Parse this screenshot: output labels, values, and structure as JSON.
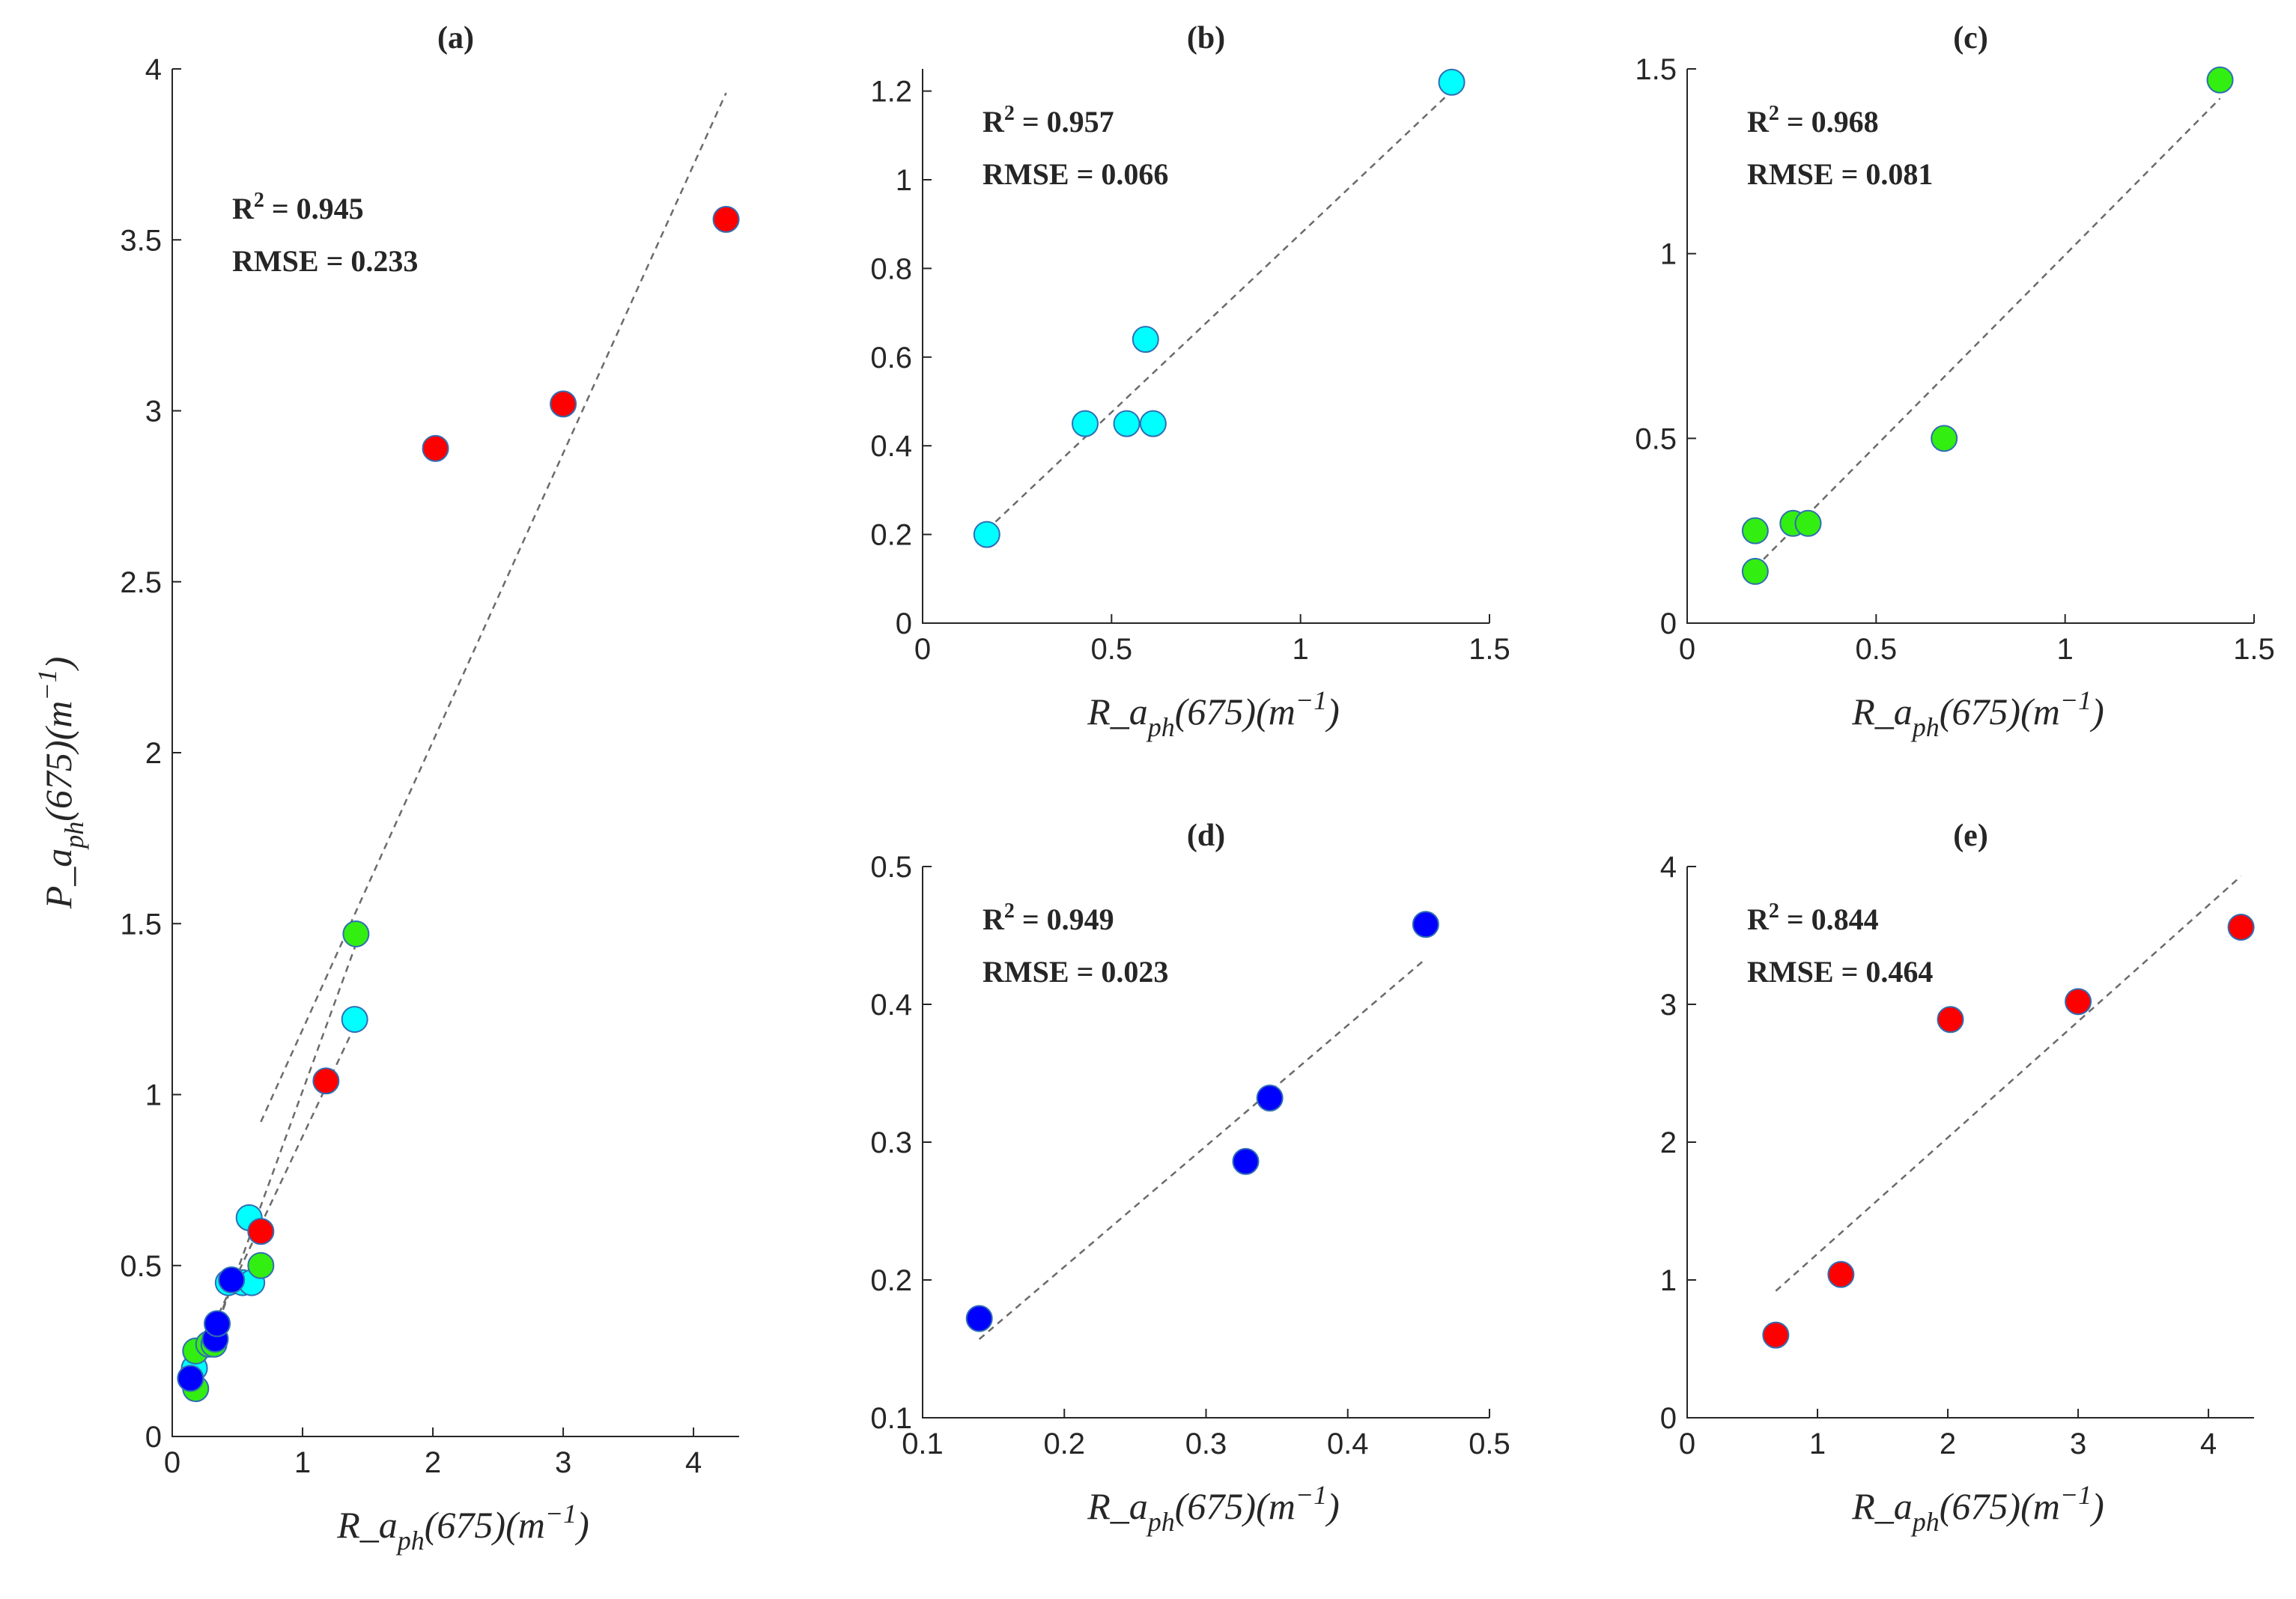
{
  "colors": {
    "red": "#ff0000",
    "cyan": "#00ffff",
    "green": "#33ee11",
    "blue": "#0000ff"
  },
  "chart_data": [
    {
      "id": "a",
      "type": "scatter",
      "title": "(a)",
      "xlabel": {
        "main": "R_a",
        "sub": "ph",
        "rest": "(675)(m",
        "sup": "−1",
        "close": ")"
      },
      "ylabel": {
        "main": "P_a",
        "sub": "ph",
        "rest": "(675)(m",
        "sup": "−1",
        "close": ")"
      },
      "xlim": [
        0,
        4.35
      ],
      "ylim": [
        0,
        4
      ],
      "xticks": [
        0,
        1,
        2,
        3,
        4
      ],
      "yticks": [
        0,
        0.5,
        1,
        1.5,
        2,
        2.5,
        3,
        3.5,
        4
      ],
      "xtick_labels": [
        "0",
        "1",
        "2",
        "3",
        "4"
      ],
      "ytick_labels": [
        "0",
        "0.5",
        "1",
        "1.5",
        "2",
        "2.5",
        "3",
        "3.5",
        "4"
      ],
      "annotation": {
        "r2_prefix": "R",
        "r2_sup": "2",
        "r2_value": " = 0.945",
        "rmse": "RMSE = 0.233"
      },
      "fit_lines": [
        {
          "x": [
            0.68,
            4.25
          ],
          "y": [
            0.92,
            3.93
          ]
        },
        {
          "x": [
            0.17,
            1.41
          ],
          "y": [
            0.14,
            1.44
          ]
        },
        {
          "x": [
            0.16,
            1.4
          ],
          "y": [
            0.2,
            1.2
          ]
        },
        {
          "x": [
            0.14,
            0.46
          ],
          "y": [
            0.15,
            0.44
          ]
        }
      ],
      "series": [
        {
          "name": "cyan",
          "color": "cyan",
          "points": [
            [
              0.17,
              0.2
            ],
            [
              0.43,
              0.45
            ],
            [
              0.54,
              0.45
            ],
            [
              0.61,
              0.45
            ],
            [
              0.59,
              0.64
            ],
            [
              1.4,
              1.22
            ]
          ]
        },
        {
          "name": "green",
          "color": "green",
          "points": [
            [
              0.18,
              0.14
            ],
            [
              0.18,
              0.25
            ],
            [
              0.28,
              0.27
            ],
            [
              0.32,
              0.27
            ],
            [
              0.68,
              0.5
            ],
            [
              1.41,
              1.47
            ]
          ]
        },
        {
          "name": "blue",
          "color": "blue",
          "points": [
            [
              0.14,
              0.17
            ],
            [
              0.33,
              0.285
            ],
            [
              0.345,
              0.33
            ],
            [
              0.455,
              0.458
            ]
          ]
        },
        {
          "name": "red",
          "color": "red",
          "points": [
            [
              0.68,
              0.6
            ],
            [
              1.18,
              1.04
            ],
            [
              2.02,
              2.89
            ],
            [
              3.0,
              3.02
            ],
            [
              4.25,
              3.56
            ]
          ]
        }
      ]
    },
    {
      "id": "b",
      "type": "scatter",
      "title": "(b)",
      "xlabel": {
        "main": "R_a",
        "sub": "ph",
        "rest": "(675)(m",
        "sup": "−1",
        "close": ")"
      },
      "xlim": [
        0,
        1.5
      ],
      "ylim": [
        0,
        1.25
      ],
      "xticks": [
        0,
        0.5,
        1,
        1.5
      ],
      "yticks": [
        0,
        0.2,
        0.4,
        0.6,
        0.8,
        1,
        1.2
      ],
      "xtick_labels": [
        "0",
        "0.5",
        "1",
        "1.5"
      ],
      "ytick_labels": [
        "0",
        "0.2",
        "0.4",
        "0.6",
        "0.8",
        "1",
        "1.2"
      ],
      "annotation": {
        "r2_prefix": "R",
        "r2_sup": "2",
        "r2_value": " = 0.957",
        "rmse": "RMSE = 0.066"
      },
      "fit_lines": [
        {
          "x": [
            0.17,
            1.4
          ],
          "y": [
            0.21,
            1.2
          ]
        }
      ],
      "series": [
        {
          "name": "cyan",
          "color": "cyan",
          "points": [
            [
              0.17,
              0.2
            ],
            [
              0.43,
              0.45
            ],
            [
              0.54,
              0.45
            ],
            [
              0.61,
              0.45
            ],
            [
              0.59,
              0.64
            ],
            [
              1.4,
              1.22
            ]
          ]
        }
      ]
    },
    {
      "id": "c",
      "type": "scatter",
      "title": "(c)",
      "xlabel": {
        "main": "R_a",
        "sub": "ph",
        "rest": "(675)(m",
        "sup": "−1",
        "close": ")"
      },
      "xlim": [
        0,
        1.5
      ],
      "ylim": [
        0,
        1.5
      ],
      "xticks": [
        0,
        0.5,
        1,
        1.5
      ],
      "yticks": [
        0,
        0.5,
        1,
        1.5
      ],
      "xtick_labels": [
        "0",
        "0.5",
        "1",
        "1.5"
      ],
      "ytick_labels": [
        "0",
        "0.5",
        "1",
        "1.5"
      ],
      "annotation": {
        "r2_prefix": "R",
        "r2_sup": "2",
        "r2_value": " = 0.968",
        "rmse": "RMSE = 0.081"
      },
      "fit_lines": [
        {
          "x": [
            0.18,
            1.41
          ],
          "y": [
            0.15,
            1.42
          ]
        }
      ],
      "series": [
        {
          "name": "green",
          "color": "green",
          "points": [
            [
              0.18,
              0.14
            ],
            [
              0.18,
              0.25
            ],
            [
              0.28,
              0.27
            ],
            [
              0.32,
              0.27
            ],
            [
              0.68,
              0.5
            ],
            [
              1.41,
              1.47
            ]
          ]
        }
      ]
    },
    {
      "id": "d",
      "type": "scatter",
      "title": "(d)",
      "xlabel": {
        "main": "R_a",
        "sub": "ph",
        "rest": "(675)(m",
        "sup": "−1",
        "close": ")"
      },
      "xlim": [
        0.1,
        0.5
      ],
      "ylim": [
        0.1,
        0.5
      ],
      "xticks": [
        0.1,
        0.2,
        0.3,
        0.4,
        0.5
      ],
      "yticks": [
        0.1,
        0.2,
        0.3,
        0.4,
        0.5
      ],
      "xtick_labels": [
        "0.1",
        "0.2",
        "0.3",
        "0.4",
        "0.5"
      ],
      "ytick_labels": [
        "0.1",
        "0.2",
        "0.3",
        "0.4",
        "0.5"
      ],
      "annotation": {
        "r2_prefix": "R",
        "r2_sup": "2",
        "r2_value": " = 0.949",
        "rmse": "RMSE = 0.023"
      },
      "fit_lines": [
        {
          "x": [
            0.14,
            0.455
          ],
          "y": [
            0.157,
            0.433
          ]
        }
      ],
      "series": [
        {
          "name": "blue",
          "color": "blue",
          "points": [
            [
              0.14,
              0.172
            ],
            [
              0.328,
              0.286
            ],
            [
              0.345,
              0.332
            ],
            [
              0.455,
              0.458
            ]
          ]
        }
      ]
    },
    {
      "id": "e",
      "type": "scatter",
      "title": "(e)",
      "xlabel": {
        "main": "R_a",
        "sub": "ph",
        "rest": "(675)(m",
        "sup": "−1",
        "close": ")"
      },
      "xlim": [
        0,
        4.35
      ],
      "ylim": [
        0,
        4
      ],
      "xticks": [
        0,
        1,
        2,
        3,
        4
      ],
      "yticks": [
        0,
        1,
        2,
        3,
        4
      ],
      "xtick_labels": [
        "0",
        "1",
        "2",
        "3",
        "4"
      ],
      "ytick_labels": [
        "0",
        "1",
        "2",
        "3",
        "4"
      ],
      "annotation": {
        "r2_prefix": "R",
        "r2_sup": "2",
        "r2_value": " = 0.844",
        "rmse": "RMSE = 0.464"
      },
      "fit_lines": [
        {
          "x": [
            0.68,
            4.25
          ],
          "y": [
            0.92,
            3.93
          ]
        }
      ],
      "series": [
        {
          "name": "red",
          "color": "red",
          "points": [
            [
              0.68,
              0.6
            ],
            [
              1.18,
              1.04
            ],
            [
              2.02,
              2.89
            ],
            [
              3.0,
              3.02
            ],
            [
              4.25,
              3.56
            ]
          ]
        }
      ]
    }
  ]
}
